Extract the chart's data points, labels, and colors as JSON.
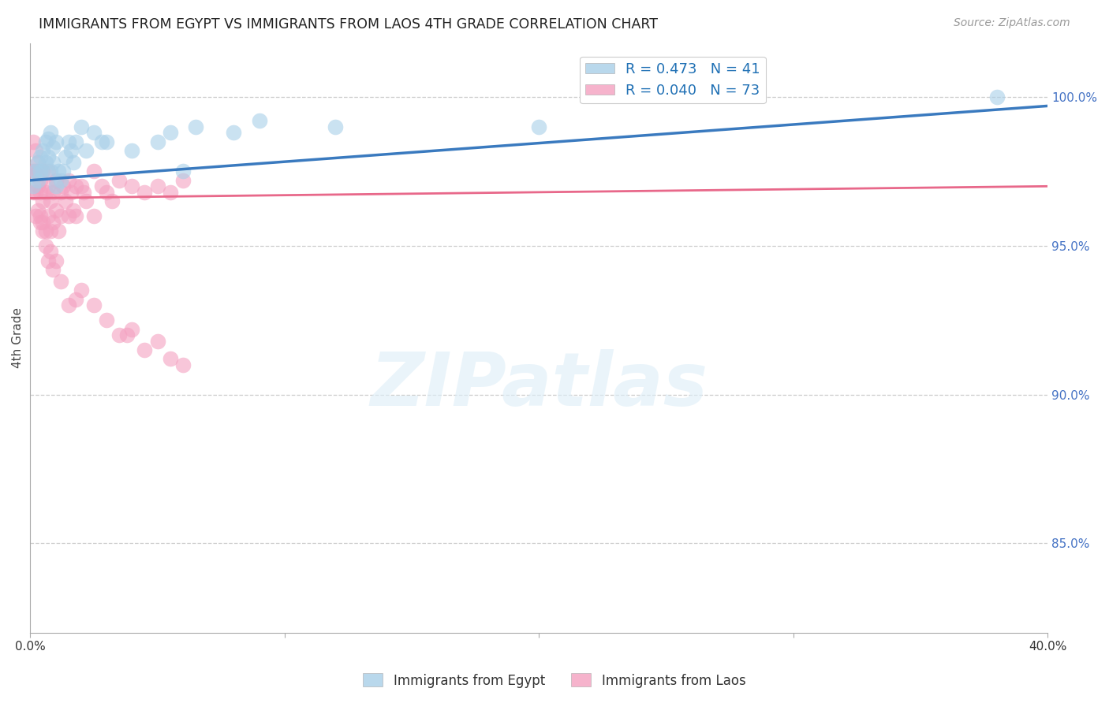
{
  "title": "IMMIGRANTS FROM EGYPT VS IMMIGRANTS FROM LAOS 4TH GRADE CORRELATION CHART",
  "source": "Source: ZipAtlas.com",
  "ylabel": "4th Grade",
  "right_yticks": [
    "85.0%",
    "90.0%",
    "95.0%",
    "100.0%"
  ],
  "right_ytick_vals": [
    0.85,
    0.9,
    0.95,
    1.0
  ],
  "xlim": [
    0.0,
    0.4
  ],
  "ylim": [
    0.82,
    1.018
  ],
  "legend_egypt": "R = 0.473   N = 41",
  "legend_laos": "R = 0.040   N = 73",
  "egypt_color": "#a8cfe8",
  "laos_color": "#f4a0c0",
  "egypt_line_color": "#3a7abf",
  "laos_line_color": "#e8688a",
  "egypt_scatter_x": [
    0.001,
    0.002,
    0.003,
    0.003,
    0.004,
    0.004,
    0.005,
    0.005,
    0.006,
    0.006,
    0.007,
    0.007,
    0.008,
    0.008,
    0.009,
    0.009,
    0.01,
    0.01,
    0.011,
    0.012,
    0.013,
    0.014,
    0.015,
    0.016,
    0.017,
    0.018,
    0.02,
    0.022,
    0.025,
    0.028,
    0.03,
    0.04,
    0.05,
    0.055,
    0.06,
    0.065,
    0.08,
    0.09,
    0.12,
    0.2,
    0.38
  ],
  "egypt_scatter_y": [
    0.97,
    0.975,
    0.972,
    0.978,
    0.975,
    0.98,
    0.975,
    0.982,
    0.978,
    0.985,
    0.98,
    0.986,
    0.975,
    0.988,
    0.978,
    0.983,
    0.97,
    0.985,
    0.975,
    0.972,
    0.975,
    0.98,
    0.985,
    0.982,
    0.978,
    0.985,
    0.99,
    0.982,
    0.988,
    0.985,
    0.985,
    0.982,
    0.985,
    0.988,
    0.975,
    0.99,
    0.988,
    0.992,
    0.99,
    0.99,
    1.0
  ],
  "laos_scatter_x": [
    0.001,
    0.001,
    0.002,
    0.002,
    0.002,
    0.003,
    0.003,
    0.003,
    0.004,
    0.004,
    0.004,
    0.005,
    0.005,
    0.005,
    0.006,
    0.006,
    0.007,
    0.007,
    0.007,
    0.008,
    0.008,
    0.009,
    0.009,
    0.01,
    0.01,
    0.011,
    0.012,
    0.012,
    0.013,
    0.014,
    0.015,
    0.015,
    0.016,
    0.017,
    0.018,
    0.018,
    0.02,
    0.021,
    0.022,
    0.025,
    0.025,
    0.028,
    0.03,
    0.032,
    0.035,
    0.04,
    0.045,
    0.05,
    0.055,
    0.06,
    0.001,
    0.002,
    0.003,
    0.004,
    0.005,
    0.006,
    0.007,
    0.008,
    0.009,
    0.01,
    0.012,
    0.015,
    0.018,
    0.02,
    0.025,
    0.03,
    0.035,
    0.038,
    0.04,
    0.045,
    0.05,
    0.055,
    0.06
  ],
  "laos_scatter_y": [
    0.975,
    0.968,
    0.975,
    0.96,
    0.968,
    0.975,
    0.962,
    0.97,
    0.968,
    0.958,
    0.972,
    0.965,
    0.958,
    0.975,
    0.968,
    0.955,
    0.97,
    0.96,
    0.975,
    0.965,
    0.955,
    0.968,
    0.958,
    0.972,
    0.962,
    0.955,
    0.968,
    0.96,
    0.97,
    0.965,
    0.972,
    0.96,
    0.968,
    0.962,
    0.97,
    0.96,
    0.97,
    0.968,
    0.965,
    0.975,
    0.96,
    0.97,
    0.968,
    0.965,
    0.972,
    0.97,
    0.968,
    0.97,
    0.968,
    0.972,
    0.985,
    0.982,
    0.978,
    0.96,
    0.955,
    0.95,
    0.945,
    0.948,
    0.942,
    0.945,
    0.938,
    0.93,
    0.932,
    0.935,
    0.93,
    0.925,
    0.92,
    0.92,
    0.922,
    0.915,
    0.918,
    0.912,
    0.91
  ],
  "watermark": "ZIPatlas",
  "background_color": "#ffffff",
  "grid_color": "#cccccc"
}
